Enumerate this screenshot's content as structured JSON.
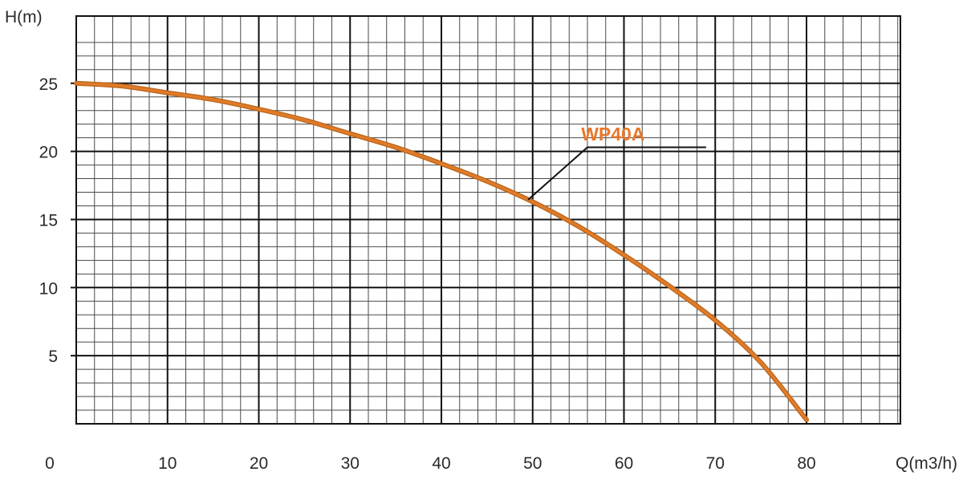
{
  "chart_data": {
    "type": "line",
    "title": "",
    "xlabel": "Q(m3/h)",
    "ylabel": "H(m)",
    "origin_label": "0",
    "xlim": [
      0,
      90
    ],
    "ylim": [
      0,
      28
    ],
    "x_ticks": [
      10,
      20,
      30,
      40,
      50,
      60,
      70,
      80
    ],
    "y_ticks": [
      5,
      10,
      15,
      20,
      25
    ],
    "grid": true,
    "minor_grid_x_step": 2,
    "minor_grid_y_step": 1,
    "legend": "none",
    "colors": {
      "curve": "#e07b2a",
      "curve_dark": "#b8651a",
      "label": "#e8782a",
      "grid_minor": "#4a4a4a",
      "grid_major": "#111111",
      "leader": "#111111"
    },
    "series": [
      {
        "name": "WP40A",
        "x": [
          0,
          5,
          10,
          15,
          20,
          25,
          30,
          35,
          40,
          45,
          50,
          55,
          60,
          65,
          70,
          75,
          80
        ],
        "y": [
          25,
          24.8,
          24.3,
          23.8,
          23.1,
          22.3,
          21.3,
          20.3,
          19.1,
          17.8,
          16.3,
          14.5,
          12.4,
          10.1,
          7.6,
          4.5,
          0.3
        ]
      }
    ]
  }
}
